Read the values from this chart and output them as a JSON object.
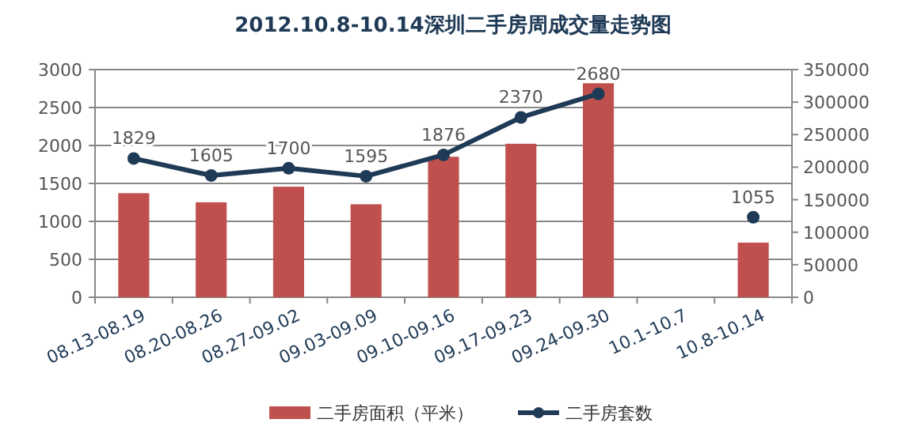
{
  "chart_data": {
    "type": "bar",
    "title": "2012.10.8-10.14深圳二手房周成交量走势图",
    "categories": [
      "08.13-08.19",
      "08.20-08.26",
      "08.27-09.02",
      "09.03-09.09",
      "09.10-09.16",
      "09.17-09.23",
      "09.24-09.30",
      "10.1-10.7",
      "10.8-10.14"
    ],
    "series": [
      {
        "name": "二手房面积（平米）",
        "axis": "y2",
        "color": "#c0504d",
        "values": [
          160000,
          146000,
          170000,
          143000,
          216000,
          236000,
          329000,
          null,
          84000
        ]
      },
      {
        "name": "二手房套数",
        "type": "line",
        "color": "#1f3a56",
        "marker": "circle",
        "values": [
          1829,
          1605,
          1700,
          1595,
          1876,
          2370,
          2680,
          null,
          1055
        ],
        "value_labels": [
          "1829",
          "1605",
          "1700",
          "1595",
          "1876",
          "2370",
          "2680",
          null,
          "1055"
        ]
      }
    ],
    "ylim": [
      0,
      3000
    ],
    "yticks": [
      0,
      500,
      1000,
      1500,
      2000,
      2500,
      3000
    ],
    "y2lim": [
      0,
      350000
    ],
    "y2ticks": [
      0,
      50000,
      100000,
      150000,
      200000,
      250000,
      300000,
      350000
    ],
    "grid": "y",
    "legend": "bottom"
  }
}
